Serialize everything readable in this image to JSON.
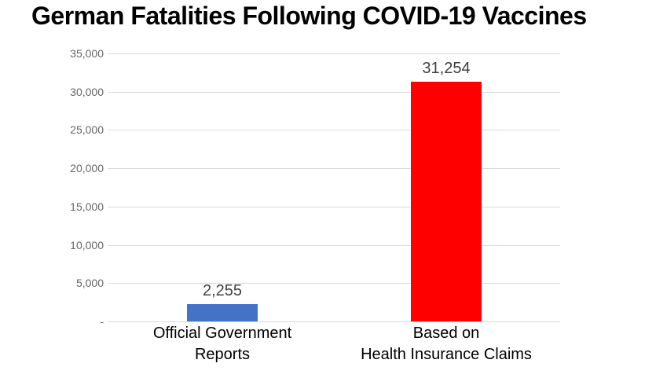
{
  "title": "German Fatalities Following COVID-19 Vaccines",
  "colors": {
    "background": "#FFFFFF",
    "bar_blue": "#4472C4",
    "bar_red": "#FF0000",
    "gridline": "#D9D9D9",
    "ytick_label": "#666666",
    "value_label": "#404040",
    "category_label": "#000000",
    "title": "#000000"
  },
  "chart_data": {
    "type": "bar",
    "title": "German Fatalities Following COVID-19 Vaccines",
    "categories": [
      "Official Government\nReports",
      "Based on\nHealth Insurance Claims"
    ],
    "values": [
      2255,
      31254
    ],
    "value_labels": [
      "2,255",
      "31,254"
    ],
    "bar_colors": [
      "#4472C4",
      "#FF0000"
    ],
    "xlabel": "",
    "ylabel": "",
    "ylim": [
      0,
      35000
    ],
    "ytick_interval": 5000,
    "ytick_labels": [
      "-",
      "5,000",
      "10,000",
      "15,000",
      "20,000",
      "25,000",
      "30,000",
      "35,000"
    ],
    "grid": true,
    "legend": false
  }
}
